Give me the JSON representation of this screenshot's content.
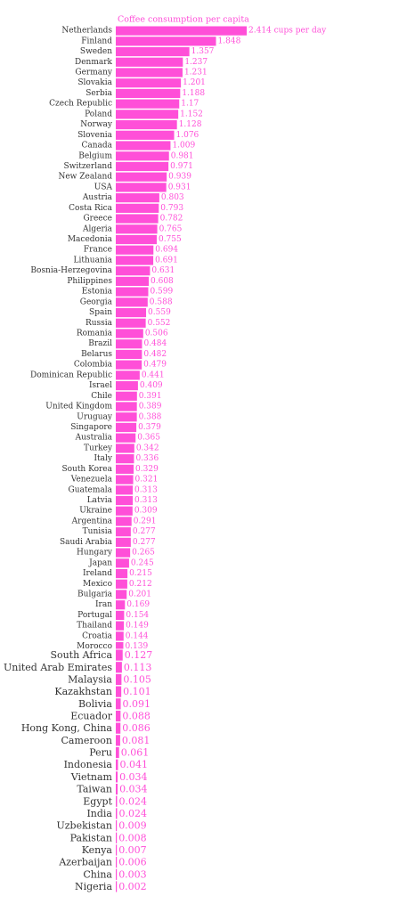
{
  "chart_data": {
    "type": "bar",
    "orientation": "horizontal",
    "title": "Coffee consumption per capita",
    "first_value_suffix": " cups per day",
    "bar_color": "#ff4fd8",
    "categories": [
      "Netherlands",
      "Finland",
      "Sweden",
      "Denmark",
      "Germany",
      "Slovakia",
      "Serbia",
      "Czech Republic",
      "Poland",
      "Norway",
      "Slovenia",
      "Canada",
      "Belgium",
      "Switzerland",
      "New Zealand",
      "USA",
      "Austria",
      "Costa Rica",
      "Greece",
      "Algeria",
      "Macedonia",
      "France",
      "Lithuania",
      "Bosnia-Herzegovina",
      "Philippines",
      "Estonia",
      "Georgia",
      "Spain",
      "Russia",
      "Romania",
      "Brazil",
      "Belarus",
      "Colombia",
      "Dominican Republic",
      "Israel",
      "Chile",
      "United Kingdom",
      "Uruguay",
      "Singapore",
      "Australia",
      "Turkey",
      "Italy",
      "South Korea",
      "Venezuela",
      "Guatemala",
      "Latvia",
      "Ukraine",
      "Argentina",
      "Tunisia",
      "Saudi Arabia",
      "Hungary",
      "Japan",
      "Ireland",
      "Mexico",
      "Bulgaria",
      "Iran",
      "Portugal",
      "Thailand",
      "Croatia",
      "Morocco",
      "South Africa",
      "United Arab Emirates",
      "Malaysia",
      "Kazakhstan",
      "Bolivia",
      "Ecuador",
      "Hong Kong, China",
      "Cameroon",
      "Peru",
      "Indonesia",
      "Vietnam",
      "Taiwan",
      "Egypt",
      "India",
      "Uzbekistan",
      "Pakistan",
      "Kenya",
      "Azerbaijan",
      "China",
      "Nigeria"
    ],
    "values": [
      2.414,
      1.848,
      1.357,
      1.237,
      1.231,
      1.201,
      1.188,
      1.17,
      1.152,
      1.128,
      1.076,
      1.009,
      0.981,
      0.971,
      0.939,
      0.931,
      0.803,
      0.793,
      0.782,
      0.765,
      0.755,
      0.694,
      0.691,
      0.631,
      0.608,
      0.599,
      0.588,
      0.559,
      0.552,
      0.506,
      0.484,
      0.482,
      0.479,
      0.441,
      0.409,
      0.391,
      0.389,
      0.388,
      0.379,
      0.365,
      0.342,
      0.336,
      0.329,
      0.321,
      0.313,
      0.313,
      0.309,
      0.291,
      0.277,
      0.277,
      0.265,
      0.245,
      0.215,
      0.212,
      0.201,
      0.169,
      0.154,
      0.149,
      0.144,
      0.139,
      0.127,
      0.113,
      0.105,
      0.101,
      0.091,
      0.088,
      0.086,
      0.081,
      0.061,
      0.041,
      0.034,
      0.034,
      0.024,
      0.024,
      0.009,
      0.008,
      0.007,
      0.006,
      0.003,
      0.002
    ],
    "value_labels": [
      "2.414",
      "1.848",
      "1.357",
      "1.237",
      "1.231",
      "1.201",
      "1.188",
      "1.17",
      "1.152",
      "1.128",
      "1.076",
      "1.009",
      "0.981",
      "0.971",
      "0.939",
      "0.931",
      "0.803",
      "0.793",
      "0.782",
      "0.765",
      "0.755",
      "0.694",
      "0.691",
      "0.631",
      "0.608",
      "0.599",
      "0.588",
      "0.559",
      "0.552",
      "0.506",
      "0.484",
      "0.482",
      "0.479",
      "0.441",
      "0.409",
      "0.391",
      "0.389",
      "0.388",
      "0.379",
      "0.365",
      "0.342",
      "0.336",
      "0.329",
      "0.321",
      "0.313",
      "0.313",
      "0.309",
      "0.291",
      "0.277",
      "0.277",
      "0.265",
      "0.245",
      "0.215",
      "0.212",
      "0.201",
      "0.169",
      "0.154",
      "0.149",
      "0.144",
      "0.139",
      "0.127",
      "0.113",
      "0.105",
      "0.101",
      "0.091",
      "0.088",
      "0.086",
      "0.081",
      "0.061",
      "0.041",
      "0.034",
      "0.034",
      "0.024",
      "0.024",
      "0.009",
      "0.008",
      "0.007",
      "0.006",
      "0.003",
      "0.002"
    ],
    "xlim": [
      0,
      2.414
    ],
    "grid": false,
    "legend": "none"
  }
}
